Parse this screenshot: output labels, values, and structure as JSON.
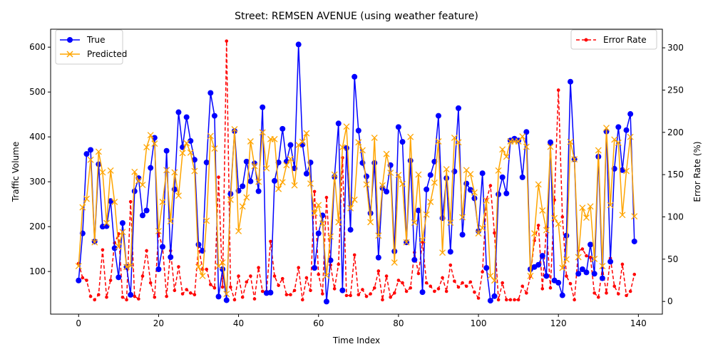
{
  "chart_data": {
    "type": "line",
    "title": "Street: REMSEN AVENUE (using weather feature)",
    "xlabel": "Time Index",
    "ylabel": "Traffic Volume",
    "y2label": "Error Rate (%)",
    "xlim": [
      -7,
      146
    ],
    "ylim": [
      5,
      640
    ],
    "y2lim": [
      -15,
      322
    ],
    "xticks": [
      0,
      20,
      40,
      60,
      80,
      100,
      120,
      140
    ],
    "yticks": [
      100,
      200,
      300,
      400,
      500,
      600
    ],
    "y2ticks": [
      0,
      50,
      100,
      150,
      200,
      250,
      300
    ],
    "legend_left_position": "upper-left",
    "legend_right_position": "upper-right",
    "series": [
      {
        "name": "True",
        "axis": "left",
        "color": "#0000ff",
        "marker": "circle",
        "values": [
          80,
          185,
          362,
          371,
          167,
          339,
          200,
          201,
          257,
          152,
          87,
          208,
          110,
          48,
          279,
          308,
          225,
          236,
          331,
          398,
          105,
          155,
          369,
          132,
          283,
          455,
          377,
          444,
          391,
          349,
          160,
          146,
          343,
          498,
          447,
          44,
          105,
          36,
          273,
          413,
          280,
          290,
          345,
          301,
          341,
          279,
          466,
          52,
          53,
          302,
          343,
          418,
          345,
          382,
          330,
          606,
          383,
          318,
          343,
          108,
          185,
          225,
          33,
          125,
          311,
          430,
          58,
          375,
          193,
          534,
          414,
          342,
          312,
          230,
          342,
          131,
          286,
          278,
          337,
          145,
          422,
          389,
          165,
          347,
          126,
          236,
          54,
          283,
          315,
          345,
          447,
          219,
          308,
          144,
          323,
          464,
          182,
          296,
          282,
          263,
          190,
          319,
          108,
          35,
          45,
          272,
          310,
          274,
          392,
          396,
          392,
          310,
          411,
          105,
          110,
          115,
          135,
          90,
          388,
          80,
          75,
          47,
          180,
          523,
          350,
          95,
          105,
          98,
          160,
          95,
          356,
          85,
          412,
          122,
          329,
          422,
          326,
          415,
          451,
          167
        ]
      },
      {
        "name": "Predicted",
        "axis": "left",
        "color": "#ffa500",
        "marker": "x",
        "values": [
          112,
          243,
          262,
          349,
          165,
          367,
          321,
          208,
          325,
          255,
          156,
          188,
          110,
          113,
          322,
          302,
          293,
          377,
          404,
          385,
          190,
          255,
          326,
          212,
          321,
          269,
          364,
          386,
          365,
          324,
          110,
          90,
          213,
          402,
          374,
          112,
          120,
          50,
          260,
          417,
          190,
          245,
          265,
          390,
          335,
          300,
          410,
          330,
          395,
          395,
          284,
          299,
          337,
          351,
          292,
          382,
          389,
          408,
          296,
          230,
          248,
          207,
          91,
          178,
          316,
          210,
          377,
          423,
          241,
          260,
          388,
          370,
          294,
          210,
          398,
          180,
          292,
          362,
          320,
          120,
          315,
          295,
          165,
          400,
          209,
          316,
          170,
          227,
          255,
          298,
          390,
          142,
          328,
          209,
          398,
          388,
          221,
          326,
          317,
          276,
          185,
          197,
          258,
          90,
          80,
          325,
          372,
          356,
          390,
          390,
          390,
          401,
          378,
          90,
          185,
          294,
          236,
          192,
          378,
          219,
          206,
          108,
          127,
          389,
          350,
          132,
          242,
          220,
          245,
          128,
          370,
          112,
          420,
          248,
          394,
          387,
          226,
          324,
          400,
          223
        ]
      },
      {
        "name": "Error Rate",
        "axis": "right",
        "color": "#ff0000",
        "marker": "dot",
        "dashed": true,
        "values": [
          45,
          28,
          25,
          6,
          2,
          8,
          61,
          5,
          25,
          69,
          80,
          5,
          2,
          118,
          6,
          3,
          30,
          60,
          22,
          5,
          81,
          64,
          6,
          60,
          13,
          41,
          9,
          14,
          10,
          8,
          65,
          38,
          38,
          20,
          16,
          147,
          17,
          308,
          17,
          2,
          30,
          5,
          23,
          30,
          3,
          40,
          12,
          12,
          71,
          30,
          19,
          27,
          8,
          8,
          13,
          40,
          2,
          28,
          13,
          130,
          32,
          9,
          123,
          43,
          15,
          44,
          170,
          7,
          7,
          55,
          8,
          14,
          6,
          9,
          16,
          36,
          2,
          30,
          5,
          10,
          25,
          22,
          12,
          16,
          58,
          33,
          70,
          22,
          18,
          12,
          15,
          28,
          12,
          43,
          24,
          17,
          22,
          18,
          23,
          11,
          4,
          35,
          120,
          137,
          81,
          2,
          22,
          2,
          2,
          2,
          2,
          18,
          10,
          30,
          72,
          90,
          15,
          88,
          16,
          120,
          250,
          100,
          30,
          21,
          2,
          60,
          62,
          54,
          52,
          10,
          5,
          40,
          10,
          51,
          18,
          9,
          44,
          7,
          12,
          32
        ]
      }
    ]
  }
}
